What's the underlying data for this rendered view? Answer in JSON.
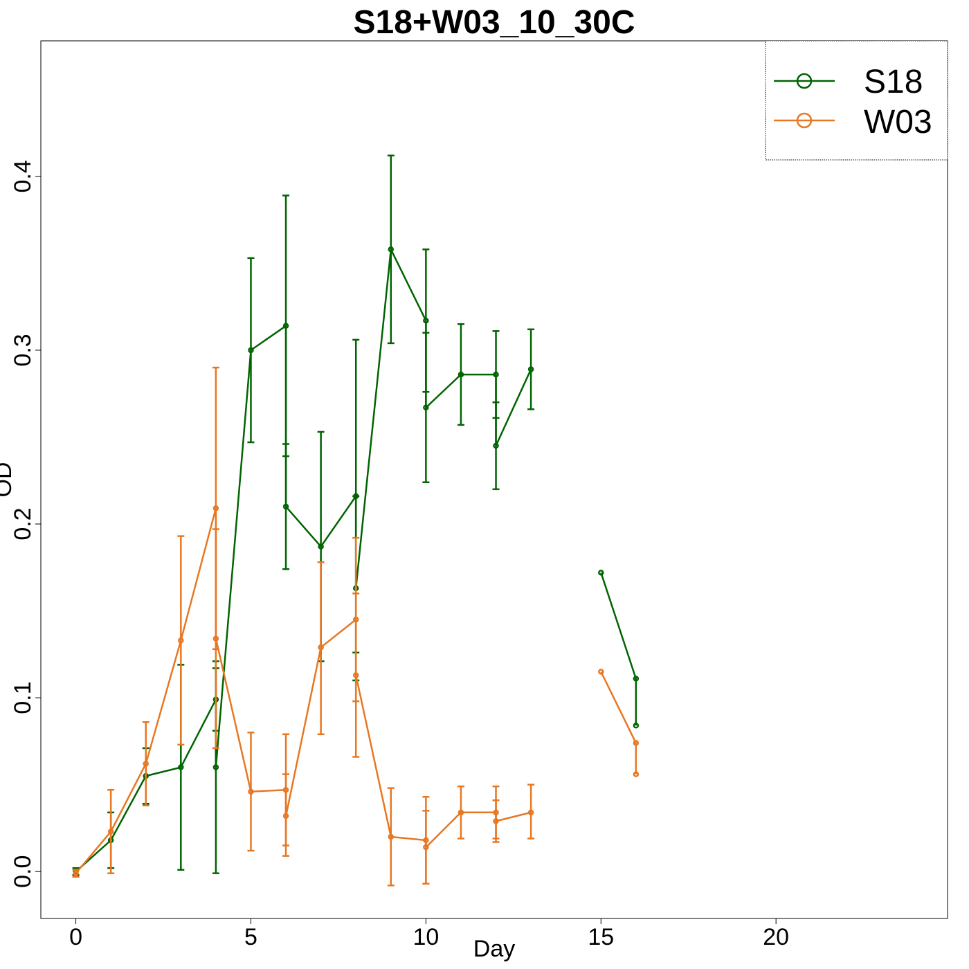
{
  "chart_data": {
    "type": "line",
    "title": "S18+W03_10_30C",
    "xlabel": "Day",
    "ylabel": "OD",
    "xlim": [
      -1,
      24.9
    ],
    "ylim": [
      -0.027,
      0.478
    ],
    "xticks": [
      0,
      5,
      10,
      15,
      20
    ],
    "yticks": [
      0.0,
      0.1,
      0.2,
      0.3,
      0.4
    ],
    "xtick_labels": [
      "0",
      "5",
      "10",
      "15",
      "20"
    ],
    "ytick_labels": [
      "0.0",
      "0.1",
      "0.2",
      "0.3",
      "0.4"
    ],
    "grid": false,
    "legend_position": "top-right",
    "series": [
      {
        "name": "S18",
        "color": "#006400",
        "marker": "open-circle",
        "points": [
          {
            "x": 0,
            "y": 0.0,
            "lo": -0.002,
            "hi": 0.002
          },
          {
            "x": 1,
            "y": 0.018,
            "lo": 0.002,
            "hi": 0.034
          },
          {
            "x": 2,
            "y": 0.055,
            "lo": 0.039,
            "hi": 0.071
          },
          {
            "x": 3,
            "y": 0.06,
            "lo": 0.001,
            "hi": 0.119
          },
          {
            "x": 4,
            "y": 0.099,
            "lo": 0.081,
            "hi": 0.117
          },
          {
            "x": 4,
            "y": 0.06,
            "lo": -0.001,
            "hi": 0.121
          },
          {
            "x": 5,
            "y": 0.3,
            "lo": 0.247,
            "hi": 0.353
          },
          {
            "x": 6,
            "y": 0.314,
            "lo": 0.239,
            "hi": 0.389
          },
          {
            "x": 6,
            "y": 0.21,
            "lo": 0.174,
            "hi": 0.246
          },
          {
            "x": 7,
            "y": 0.187,
            "lo": 0.121,
            "hi": 0.253
          },
          {
            "x": 8,
            "y": 0.216,
            "lo": 0.126,
            "hi": 0.306
          },
          {
            "x": 8,
            "y": 0.163,
            "lo": 0.11,
            "hi": 0.216
          },
          {
            "x": 9,
            "y": 0.358,
            "lo": 0.304,
            "hi": 0.412
          },
          {
            "x": 10,
            "y": 0.317,
            "lo": 0.276,
            "hi": 0.358
          },
          {
            "x": 10,
            "y": 0.267,
            "lo": 0.224,
            "hi": 0.31
          },
          {
            "x": 11,
            "y": 0.286,
            "lo": 0.257,
            "hi": 0.315
          },
          {
            "x": 12,
            "y": 0.286,
            "lo": 0.261,
            "hi": 0.311
          },
          {
            "x": 12,
            "y": 0.245,
            "lo": 0.22,
            "hi": 0.27
          },
          {
            "x": 13,
            "y": 0.289,
            "lo": 0.266,
            "hi": 0.312
          },
          {
            "x": null,
            "y": null
          },
          {
            "x": 15,
            "y": 0.172
          },
          {
            "x": 16,
            "y": 0.111
          },
          {
            "x": 16,
            "y": 0.084
          }
        ]
      },
      {
        "name": "W03",
        "color": "#E87722",
        "marker": "open-circle",
        "points": [
          {
            "x": 0,
            "y": -0.001,
            "lo": -0.003,
            "hi": 0.001
          },
          {
            "x": 1,
            "y": 0.023,
            "lo": -0.001,
            "hi": 0.047
          },
          {
            "x": 2,
            "y": 0.062,
            "lo": 0.038,
            "hi": 0.086
          },
          {
            "x": 3,
            "y": 0.133,
            "lo": 0.073,
            "hi": 0.193
          },
          {
            "x": 4,
            "y": 0.209,
            "lo": 0.128,
            "hi": 0.29
          },
          {
            "x": 4,
            "y": 0.134,
            "lo": 0.071,
            "hi": 0.197
          },
          {
            "x": 5,
            "y": 0.046,
            "lo": 0.012,
            "hi": 0.08
          },
          {
            "x": 6,
            "y": 0.047,
            "lo": 0.015,
            "hi": 0.079
          },
          {
            "x": 6,
            "y": 0.032,
            "lo": 0.009,
            "hi": 0.056
          },
          {
            "x": 7,
            "y": 0.129,
            "lo": 0.079,
            "hi": 0.178
          },
          {
            "x": 8,
            "y": 0.145,
            "lo": 0.098,
            "hi": 0.192
          },
          {
            "x": 8,
            "y": 0.113,
            "lo": 0.066,
            "hi": 0.16
          },
          {
            "x": 9,
            "y": 0.02,
            "lo": -0.008,
            "hi": 0.048
          },
          {
            "x": 10,
            "y": 0.018,
            "lo": -0.007,
            "hi": 0.043
          },
          {
            "x": 10,
            "y": 0.014,
            "lo": -0.007,
            "hi": 0.035
          },
          {
            "x": 11,
            "y": 0.034,
            "lo": 0.019,
            "hi": 0.049
          },
          {
            "x": 12,
            "y": 0.034,
            "lo": 0.019,
            "hi": 0.049
          },
          {
            "x": 12,
            "y": 0.029,
            "lo": 0.017,
            "hi": 0.041
          },
          {
            "x": 13,
            "y": 0.034,
            "lo": 0.019,
            "hi": 0.05
          },
          {
            "x": null,
            "y": null
          },
          {
            "x": 15,
            "y": 0.115
          },
          {
            "x": 16,
            "y": 0.074
          },
          {
            "x": 16,
            "y": 0.056
          }
        ]
      }
    ]
  }
}
